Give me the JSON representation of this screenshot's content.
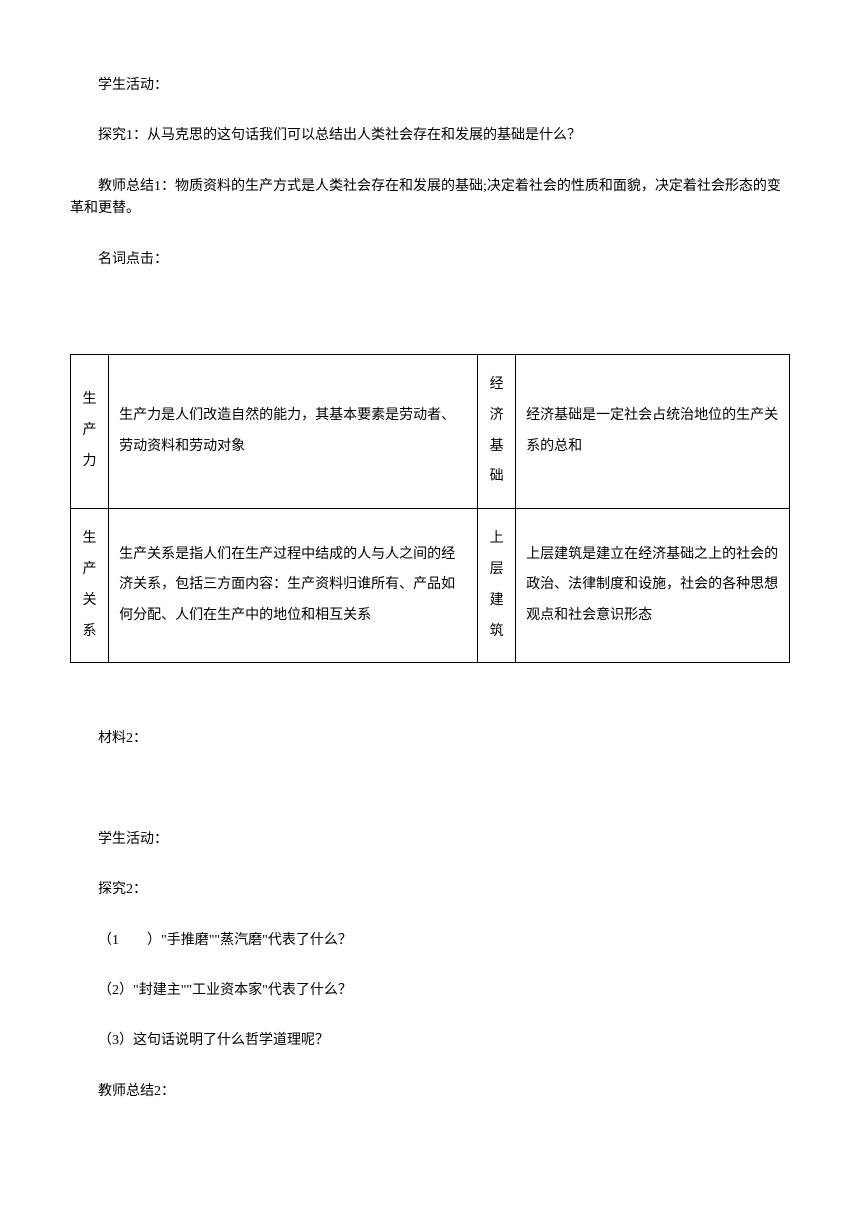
{
  "paragraphs": {
    "p1": "学生活动：",
    "p2": "探究1：从马克思的这句话我们可以总结出人类社会存在和发展的基础是什么？",
    "p3": "教师总结1：物质资料的生产方式是人类社会存在和发展的基础;决定着社会的性质和面貌，决定着社会形态的变革和更替。",
    "p4": "名词点击：",
    "p5": "材料2：",
    "p6": "学生活动：",
    "p7": "探究2：",
    "p8": "（1　　）\"手推磨\"\"蒸汽磨\"代表了什么？",
    "p9": "（2）\"封建主\"\"工业资本家\"代表了什么？",
    "p10": "（3）这句话说明了什么哲学道理呢？",
    "p11": "教师总结2："
  },
  "table": {
    "rows": [
      {
        "col1_chars": [
          "生",
          "产",
          "力"
        ],
        "col2": "生产力是人们改造自然的能力，其基本要素是劳动者、劳动资料和劳动对象",
        "col3_chars": [
          "经",
          "济",
          "基",
          "础"
        ],
        "col4": "经济基础是一定社会占统治地位的生产关系的总和"
      },
      {
        "col1_chars": [
          "生",
          "产",
          "关",
          "系"
        ],
        "col2": "生产关系是指人们在生产过程中结成的人与人之间的经济关系，包括三方面内容：生产资料归谁所有、产品如何分配、人们在生产中的地位和相互关系",
        "col3_chars": [
          "上",
          "层",
          "建",
          "筑"
        ],
        "col4": "上层建筑是建立在经济基础之上的社会的政治、法律制度和设施，社会的各种思想观点和社会意识形态"
      }
    ]
  },
  "styling": {
    "page_bg": "#ffffff",
    "text_color": "#000000",
    "border_color": "#000000",
    "font_size": 14,
    "indent_em": 2
  }
}
